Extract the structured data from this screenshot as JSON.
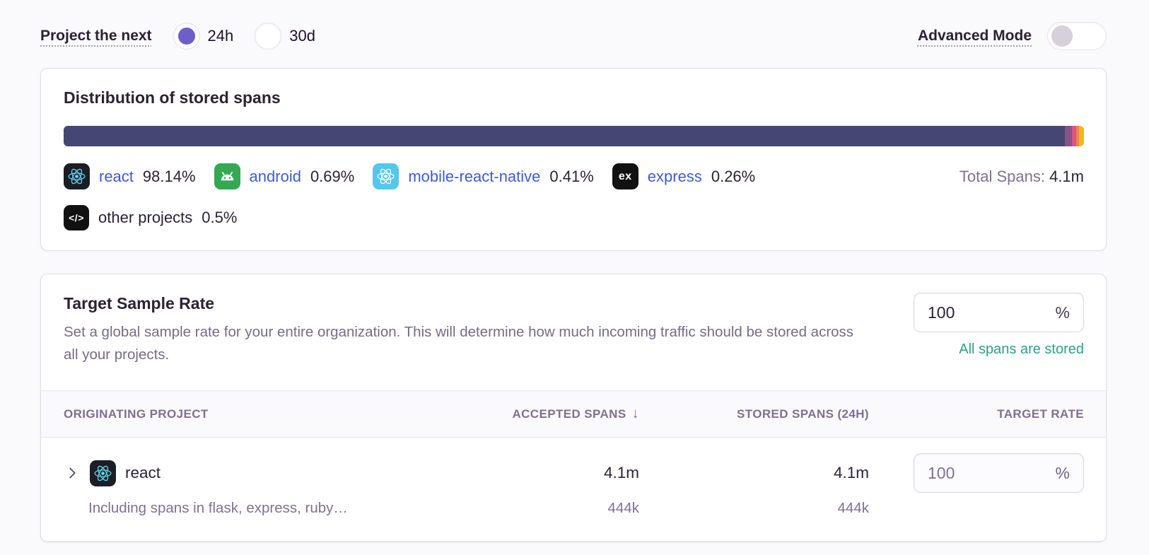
{
  "controls": {
    "project_next_label": "Project the next",
    "period_options": [
      {
        "label": "24h",
        "selected": true
      },
      {
        "label": "30d",
        "selected": false
      }
    ],
    "advanced_mode_label": "Advanced Mode",
    "advanced_mode_on": false
  },
  "distribution_card": {
    "title": "Distribution of stored spans",
    "total_label": "Total Spans:",
    "total_value": "4.1m",
    "chart": {
      "type": "stacked-bar",
      "segments": [
        {
          "name": "react",
          "value": 98.14,
          "color": "#444674"
        },
        {
          "name": "android",
          "value": 0.69,
          "color": "#895289"
        },
        {
          "name": "mobile-react-native",
          "value": 0.41,
          "color": "#D6567F"
        },
        {
          "name": "express",
          "value": 0.26,
          "color": "#F38150"
        },
        {
          "name": "other projects",
          "value": 0.5,
          "color": "#F2B712"
        }
      ]
    },
    "legend": [
      {
        "name": "react",
        "pct": "98.14%",
        "icon": "react-icon",
        "icon_bg": "#1B1E24"
      },
      {
        "name": "android",
        "pct": "0.69%",
        "icon": "android-icon",
        "icon_bg": "#34A853"
      },
      {
        "name": "mobile-react-native",
        "pct": "0.41%",
        "icon": "react-native-icon",
        "icon_bg": "#54C7EC"
      },
      {
        "name": "express",
        "pct": "0.26%",
        "icon": "express-icon",
        "icon_bg": "#111111",
        "icon_text": "ex"
      },
      {
        "name": "other projects",
        "pct": "0.5%",
        "icon": "code-icon",
        "icon_bg": "#111111",
        "icon_text": "</>"
      }
    ]
  },
  "sample_rate_card": {
    "title": "Target Sample Rate",
    "description": "Set a global sample rate for your entire organization. This will determine how much incoming traffic should be stored across all your projects.",
    "rate_input": {
      "value": "100",
      "suffix": "%"
    },
    "status_message": "All spans are stored",
    "table": {
      "columns": [
        {
          "label": "ORIGINATING PROJECT"
        },
        {
          "label": "ACCEPTED SPANS",
          "sort_indicator": "↓"
        },
        {
          "label": "STORED SPANS (24H)"
        },
        {
          "label": "TARGET RATE"
        }
      ],
      "rows": [
        {
          "project": "react",
          "accepted": "4.1m",
          "stored": "4.1m",
          "target_rate": {
            "value": "100",
            "suffix": "%"
          },
          "sub_label": "Including spans in flask, express, ruby…",
          "sub_accepted": "444k",
          "sub_stored": "444k"
        }
      ]
    }
  },
  "colors": {
    "accent_purple": "#6C5FC7",
    "link_blue": "#3C5BD7",
    "success_green": "#2BA185",
    "text_dark": "#2B2233",
    "text_gray": "#80708F",
    "card_border": "#E0DCE5",
    "page_bg": "#FAF9FB"
  }
}
